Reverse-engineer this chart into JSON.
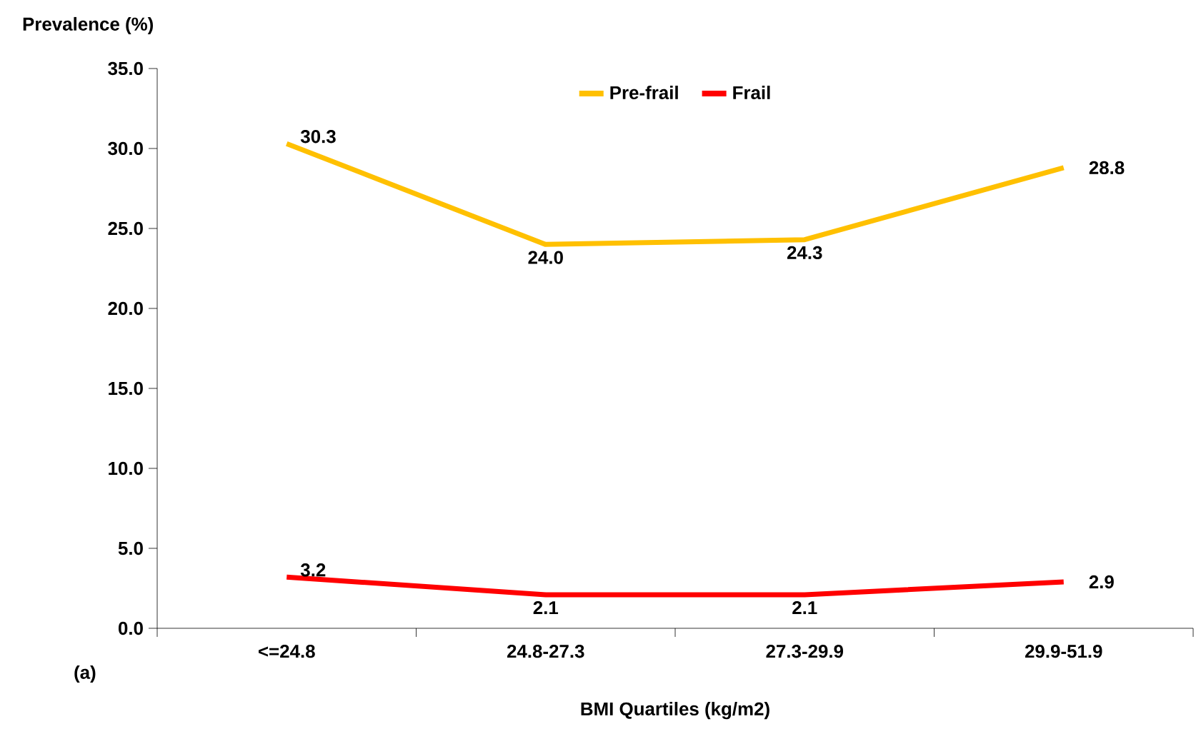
{
  "chart_data": {
    "type": "line",
    "ylabel": "Prevalence (%)",
    "xlabel": "BMI Quartiles (kg/m2)",
    "annotations": [
      "(a)"
    ],
    "categories": [
      "<=24.8",
      "24.8-27.3",
      "27.3-29.9",
      "29.9-51.9"
    ],
    "series": [
      {
        "name": "Pre-frail",
        "color": "#ffc000",
        "values": [
          30.3,
          24.0,
          24.3,
          28.8
        ],
        "value_labels": [
          "30.3",
          "24.0",
          "24.3",
          "28.8"
        ]
      },
      {
        "name": "Frail",
        "color": "#ff0000",
        "values": [
          3.2,
          2.1,
          2.1,
          2.9
        ],
        "value_labels": [
          "3.2",
          "2.1",
          "2.1",
          "2.9"
        ]
      }
    ],
    "ylim": [
      0,
      35
    ],
    "yticks": [
      {
        "value": 0,
        "label": "0.0"
      },
      {
        "value": 5,
        "label": "5.0"
      },
      {
        "value": 10,
        "label": "10.0"
      },
      {
        "value": 15,
        "label": "15.0"
      },
      {
        "value": 20,
        "label": "20.0"
      },
      {
        "value": 25,
        "label": "25.0"
      },
      {
        "value": 30,
        "label": "30.0"
      },
      {
        "value": 35,
        "label": "35.0"
      }
    ],
    "legend": "top",
    "grid": false,
    "marker": "none",
    "line_style": "solid"
  }
}
